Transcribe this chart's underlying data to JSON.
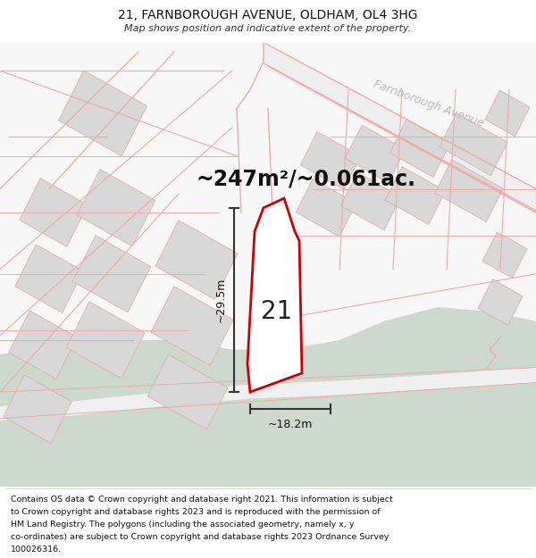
{
  "title": "21, FARNBOROUGH AVENUE, OLDHAM, OL4 3HG",
  "subtitle": "Map shows position and indicative extent of the property.",
  "area_text": "~247m²/~0.061ac.",
  "property_number": "21",
  "dim_width": "~18.2m",
  "dim_height": "~29.5m",
  "road_label": "Farnborough Avenue",
  "bg_color": "#ffffff",
  "map_bg": "#f7f7f7",
  "road_fill": "#efefef",
  "green_fill": "#cdd9cd",
  "building_fill": "#d8d8d8",
  "building_edge": "#e0b0b0",
  "property_fill": "#ffffff",
  "property_outline": "#cc0000",
  "road_outline": "#f0aaaa",
  "footer_lines": [
    "Contains OS data © Crown copyright and database right 2021. This information is subject",
    "to Crown copyright and database rights 2023 and is reproduced with the permission of",
    "HM Land Registry. The polygons (including the associated geometry, namely x, y",
    "co-ordinates) are subject to Crown copyright and database rights 2023 Ordnance Survey",
    "100026316."
  ],
  "title_fontsize": 10,
  "subtitle_fontsize": 8,
  "area_fontsize": 17,
  "dim_fontsize": 9,
  "prop_label_fontsize": 20
}
